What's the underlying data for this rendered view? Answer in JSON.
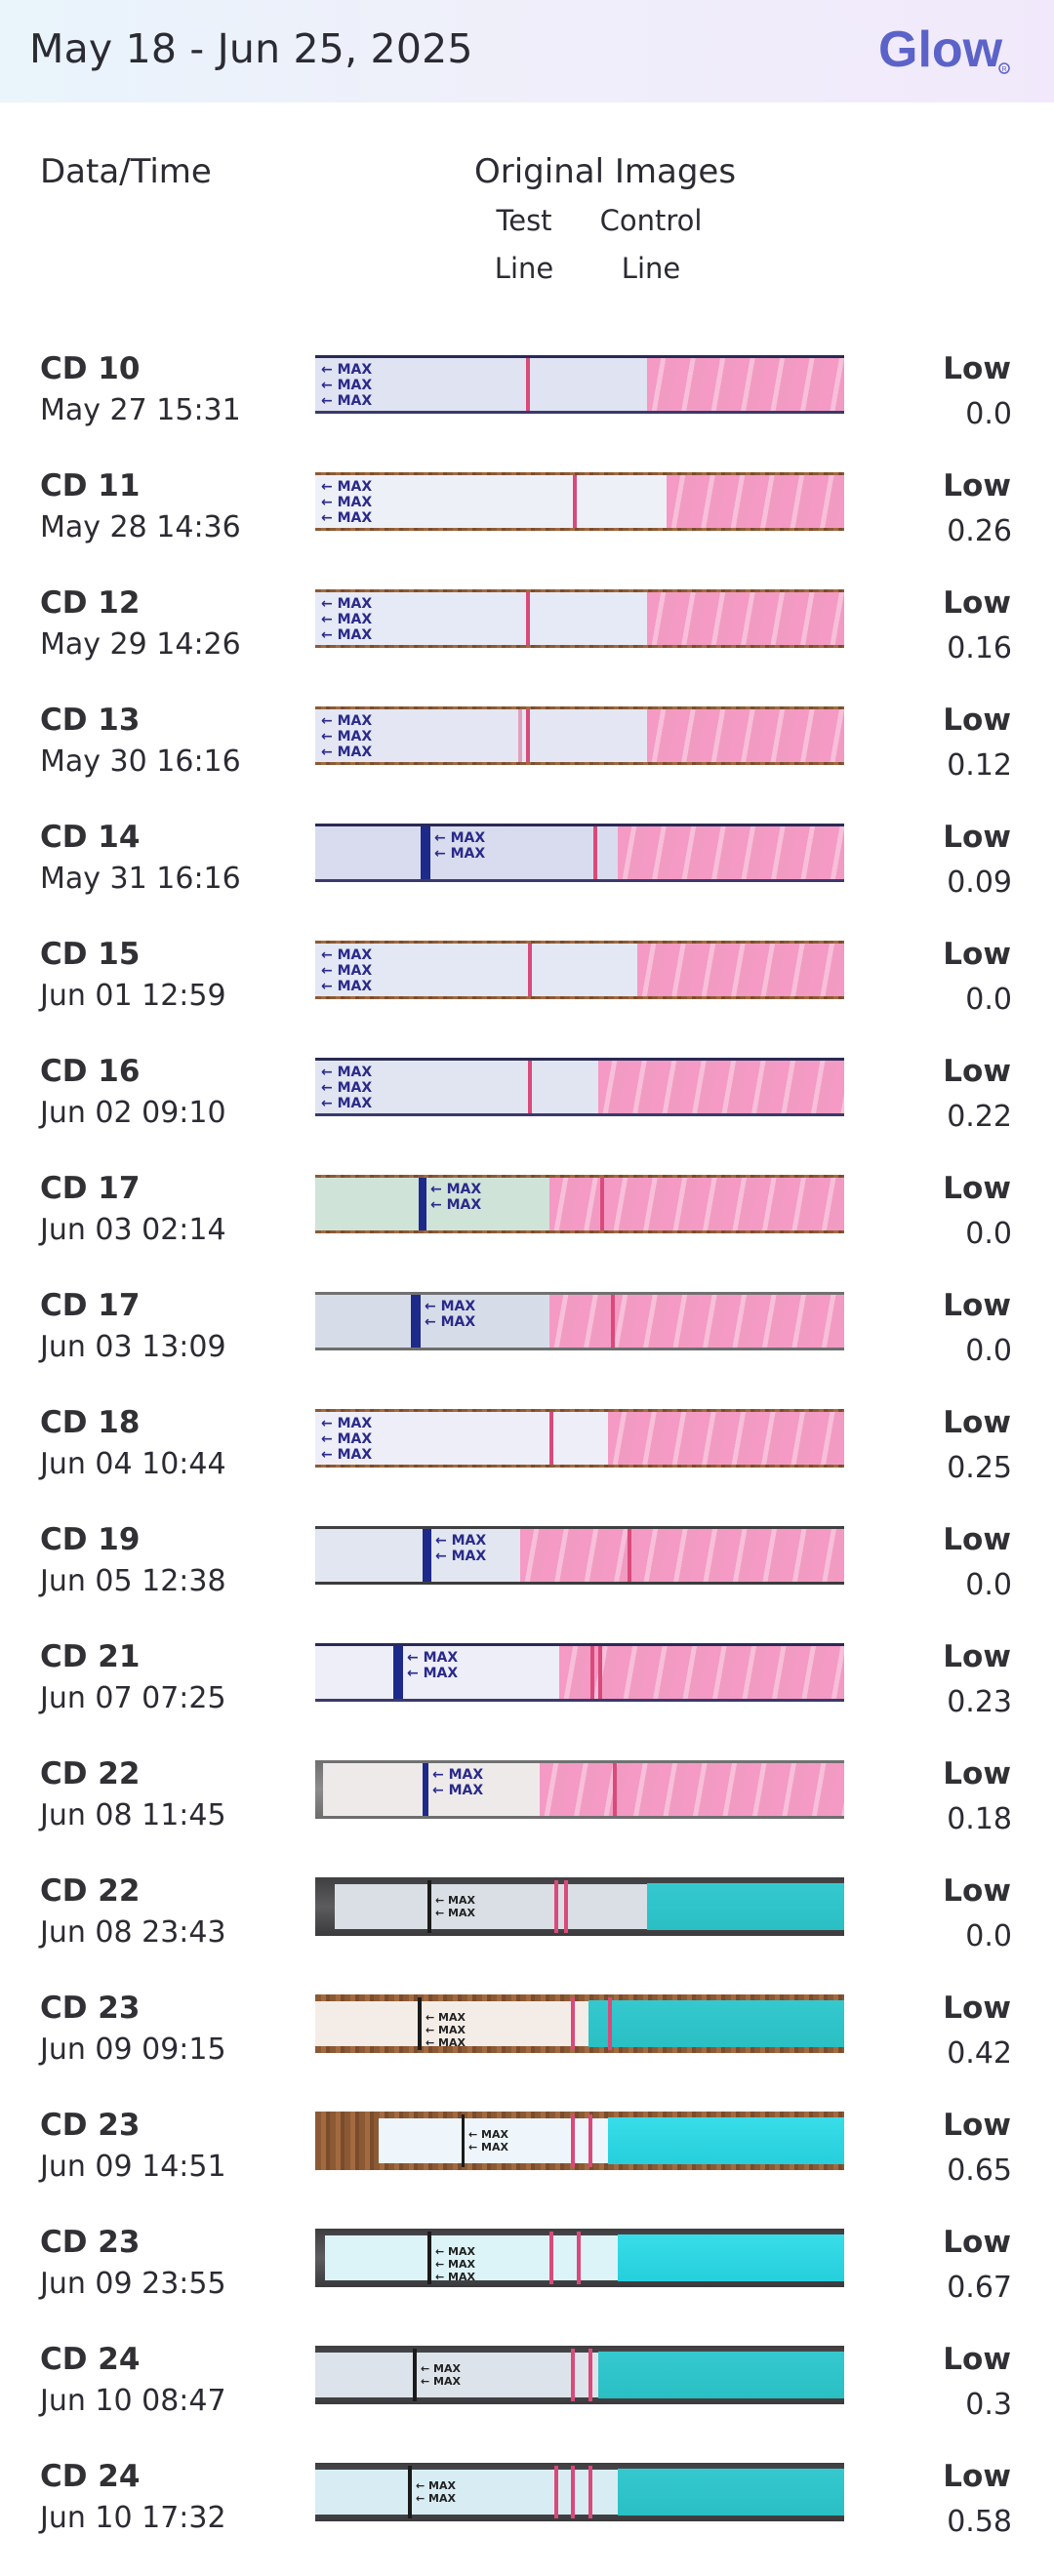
{
  "header": {
    "date_range": "May 18 - Jun 25, 2025",
    "logo_text": "Glow"
  },
  "columns": {
    "datetime": "Data/Time",
    "images": "Original Images",
    "test_line_1": "Test",
    "test_line_2": "Line",
    "control_line_1": "Control",
    "control_line_2": "Line"
  },
  "strip_label": "MAX",
  "rows": [
    {
      "cd": "CD 10",
      "dt": "May 27 15:31",
      "level": "Low",
      "value": "0.0"
    },
    {
      "cd": "CD 11",
      "dt": "May 28 14:36",
      "level": "Low",
      "value": "0.26"
    },
    {
      "cd": "CD 12",
      "dt": "May 29 14:26",
      "level": "Low",
      "value": "0.16"
    },
    {
      "cd": "CD 13",
      "dt": "May 30 16:16",
      "level": "Low",
      "value": "0.12"
    },
    {
      "cd": "CD 14",
      "dt": "May 31 16:16",
      "level": "Low",
      "value": "0.09"
    },
    {
      "cd": "CD 15",
      "dt": "Jun 01 12:59",
      "level": "Low",
      "value": "0.0"
    },
    {
      "cd": "CD 16",
      "dt": "Jun 02 09:10",
      "level": "Low",
      "value": "0.22"
    },
    {
      "cd": "CD 17",
      "dt": "Jun 03 02:14",
      "level": "Low",
      "value": "0.0"
    },
    {
      "cd": "CD 17",
      "dt": "Jun 03 13:09",
      "level": "Low",
      "value": "0.0"
    },
    {
      "cd": "CD 18",
      "dt": "Jun 04 10:44",
      "level": "Low",
      "value": "0.25"
    },
    {
      "cd": "CD 19",
      "dt": "Jun 05 12:38",
      "level": "Low",
      "value": "0.0"
    },
    {
      "cd": "CD 21",
      "dt": "Jun 07 07:25",
      "level": "Low",
      "value": "0.23"
    },
    {
      "cd": "CD 22",
      "dt": "Jun 08 11:45",
      "level": "Low",
      "value": "0.18"
    },
    {
      "cd": "CD 22",
      "dt": "Jun 08 23:43",
      "level": "Low",
      "value": "0.0"
    },
    {
      "cd": "CD 23",
      "dt": "Jun 09 09:15",
      "level": "Low",
      "value": "0.42"
    },
    {
      "cd": "CD 23",
      "dt": "Jun 09 14:51",
      "level": "Low",
      "value": "0.65"
    },
    {
      "cd": "CD 23",
      "dt": "Jun 09 23:55",
      "level": "Low",
      "value": "0.67"
    },
    {
      "cd": "CD 24",
      "dt": "Jun 10 08:47",
      "level": "Low",
      "value": "0.3"
    },
    {
      "cd": "CD 24",
      "dt": "Jun 10 17:32",
      "level": "Low",
      "value": "0.58"
    }
  ]
}
